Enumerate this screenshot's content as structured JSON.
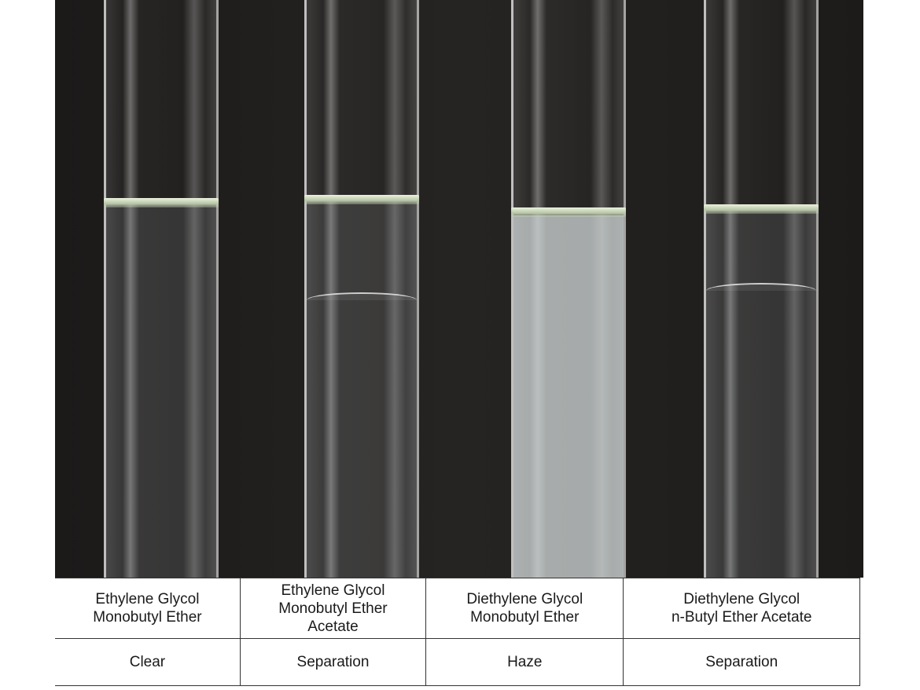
{
  "samples": [
    {
      "name_lines": [
        "Ethylene Glycol",
        "Monobutyl Ether"
      ],
      "result": "Clear"
    },
    {
      "name_lines": [
        "Ethylene Glycol",
        "Monobutyl Ether",
        "Acetate"
      ],
      "result": "Separation"
    },
    {
      "name_lines": [
        "Diethylene Glycol",
        "Monobutyl Ether"
      ],
      "result": "Haze"
    },
    {
      "name_lines": [
        "Diethylene Glycol",
        "n-Butyl Ether Acetate"
      ],
      "result": "Separation"
    }
  ]
}
